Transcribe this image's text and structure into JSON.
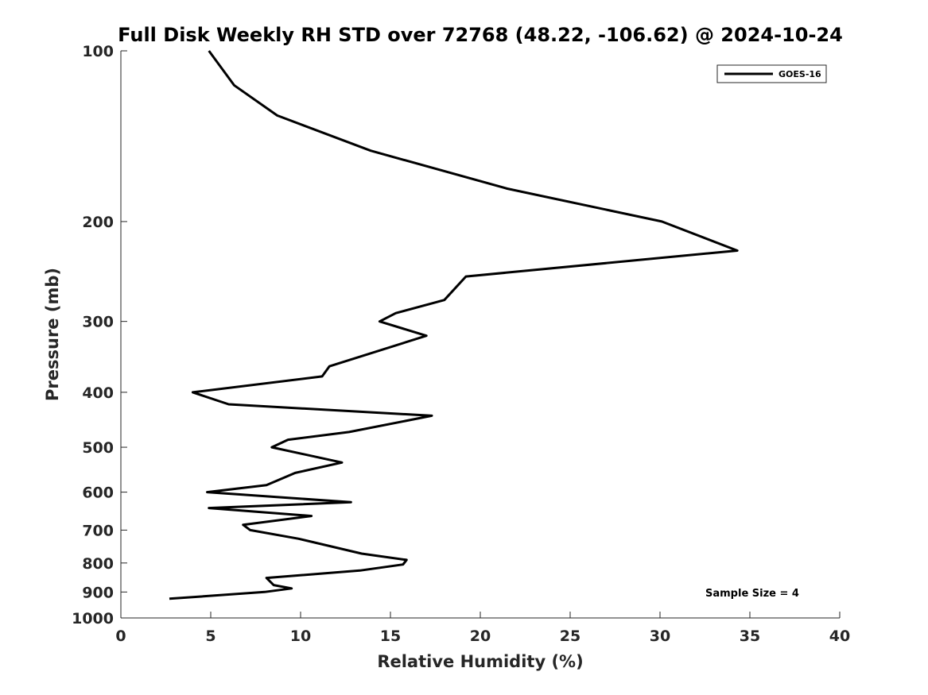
{
  "chart_data": {
    "type": "line",
    "title": "Full Disk Weekly RH STD over 72768 (48.22, -106.62) @ 2024-10-24",
    "xlabel": "Relative Humidity (%)",
    "ylabel": "Pressure (mb)",
    "xlim": [
      0,
      40
    ],
    "ylim": [
      1000,
      100
    ],
    "yscale": "log",
    "y_reversed": true,
    "grid": false,
    "legend_position": "top-right",
    "x_ticks": [
      "0",
      "5",
      "10",
      "15",
      "20",
      "25",
      "30",
      "35",
      "40"
    ],
    "y_ticks": [
      "100",
      "200",
      "300",
      "400",
      "500",
      "600",
      "700",
      "800",
      "900",
      "1000"
    ],
    "annotation": "Sample Size = 4",
    "series": [
      {
        "name": "GOES-16",
        "color": "#000000",
        "x": [
          4.9,
          6.3,
          8.7,
          13.9,
          21.5,
          30.1,
          34.3,
          19.2,
          18.0,
          15.3,
          14.4,
          17.0,
          11.6,
          11.2,
          4.0,
          6.0,
          17.3,
          12.7,
          9.3,
          8.4,
          12.3,
          9.7,
          8.1,
          4.8,
          12.8,
          4.9,
          10.6,
          6.8,
          7.2,
          9.9,
          13.4,
          15.9,
          15.7,
          13.3,
          8.1,
          8.5,
          9.5,
          8.0,
          2.7
        ],
        "y": [
          100,
          115,
          130,
          150,
          175,
          200,
          225,
          250,
          275,
          290,
          300,
          318,
          360,
          375,
          400,
          420,
          440,
          470,
          485,
          500,
          532,
          555,
          583,
          600,
          625,
          640,
          661,
          685,
          700,
          725,
          770,
          790,
          805,
          825,
          850,
          875,
          887,
          900,
          925
        ]
      }
    ]
  }
}
